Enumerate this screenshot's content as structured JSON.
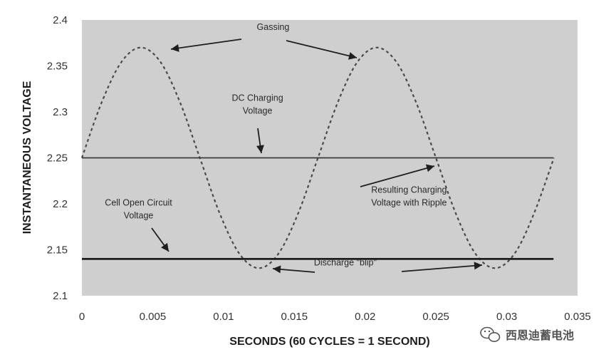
{
  "chart_data": {
    "type": "line",
    "xlabel": "SECONDS (60 CYCLES = 1 SECOND)",
    "ylabel": "INSTANTANEOUS VOLTAGE",
    "xlim": [
      0,
      0.035
    ],
    "ylim": [
      2.1,
      2.4
    ],
    "x_ticks": [
      "0",
      "0.005",
      "0.01",
      "0.015",
      "0.02",
      "0.025",
      "0.03",
      "0.035"
    ],
    "y_ticks": [
      "2.1",
      "2.15",
      "2.2",
      "2.25",
      "2.3",
      "2.35",
      "2.4"
    ],
    "grid": false,
    "series": [
      {
        "style": "dashed",
        "x": [
          0,
          0.00139,
          0.00278,
          0.00417,
          0.00556,
          0.00694,
          0.00833,
          0.00972,
          0.01111,
          0.0125,
          0.01389,
          0.01528,
          0.01667,
          0.01806,
          0.01944,
          0.02083,
          0.02222,
          0.02361,
          0.025,
          0.02639,
          0.02778,
          0.02917,
          0.03056,
          0.03194,
          0.03333
        ],
        "y": [
          2.25,
          2.31,
          2.354,
          2.37,
          2.354,
          2.31,
          2.25,
          2.19,
          2.146,
          2.13,
          2.146,
          2.19,
          2.25,
          2.31,
          2.354,
          2.37,
          2.354,
          2.31,
          2.25,
          2.19,
          2.146,
          2.13,
          2.146,
          2.19,
          2.25
        ]
      },
      {
        "style": "solid",
        "x": [
          0,
          0.0333
        ],
        "y": [
          2.25,
          2.25
        ]
      },
      {
        "style": "solid-thick",
        "x": [
          0,
          0.0333
        ],
        "y": [
          2.14,
          2.14
        ]
      }
    ],
    "annotations": [
      {
        "text": [
          "Gassing"
        ],
        "x": 0.0135,
        "y": 2.389
      },
      {
        "text": [
          "DC Charging",
          "Voltage"
        ],
        "x": 0.0124,
        "y": 2.312
      },
      {
        "text": [
          "Resulting Charging",
          "Voltage with Ripple"
        ],
        "x": 0.0231,
        "y": 2.212
      },
      {
        "text": [
          "Cell Open Circuit",
          "Voltage"
        ],
        "x": 0.004,
        "y": 2.198
      },
      {
        "text": [
          "Discharge \"blip\""
        ],
        "x": 0.0186,
        "y": 2.133
      }
    ],
    "colors": {
      "plot_bg": "#cfcfcf",
      "line": "#2a2a2a",
      "dashed": "#4a4a4a"
    }
  },
  "watermark": {
    "text": "西恩迪蓄电池",
    "icon": "wechat-icon"
  }
}
